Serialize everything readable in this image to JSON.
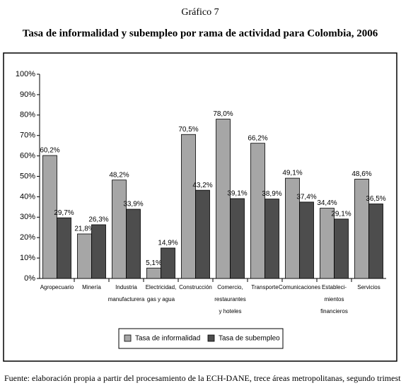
{
  "chart_data": {
    "type": "bar",
    "figure_label": "Gráfico 7",
    "title": "Tasa de informalidad y subempleo por rama de actividad para Colombia, 2006",
    "source": "Fuente: elaboración propia a partir del procesamiento de la ECH-DANE, trece áreas metropolitanas, segundo trimestre.",
    "categories": [
      "Agropecuario",
      "Minería",
      "Industria\nmanufacturera",
      "Electricidad,\ngas y agua",
      "Construcción",
      "Comercio,\nrestaurantes\ny hoteles",
      "Transporte",
      "Comunicaciones",
      "Estableci-\nmientos\nfinancieros",
      "Servicios"
    ],
    "series": [
      {
        "name": "Tasa de informalidad",
        "color": "#a6a6a6",
        "values": [
          60.2,
          21.8,
          48.2,
          5.1,
          70.5,
          78.0,
          66.2,
          49.1,
          34.4,
          48.6
        ],
        "value_labels": [
          "60,2%",
          "21,8%",
          "48,2%",
          "5,1%",
          "70,5%",
          "78,0%",
          "66,2%",
          "49,1%",
          "34,4%",
          "48,6%"
        ]
      },
      {
        "name": "Tasa de subempleo",
        "color": "#4d4d4d",
        "values": [
          29.7,
          26.3,
          33.9,
          14.9,
          43.2,
          39.1,
          38.9,
          37.4,
          29.1,
          36.5
        ],
        "value_labels": [
          "29,7%",
          "26,3%",
          "33,9%",
          "14,9%",
          "43,2%",
          "39,1%",
          "38,9%",
          "37,4%",
          "29,1%",
          "36,5%"
        ]
      }
    ],
    "ylim": [
      0,
      100
    ],
    "yticks": [
      {
        "value": 0,
        "label": "0%"
      },
      {
        "value": 10,
        "label": "10%"
      },
      {
        "value": 20,
        "label": "20%"
      },
      {
        "value": 30,
        "label": "30%"
      },
      {
        "value": 40,
        "label": "40%"
      },
      {
        "value": 50,
        "label": "50%"
      },
      {
        "value": 60,
        "label": "60%"
      },
      {
        "value": 70,
        "label": "70%"
      },
      {
        "value": 80,
        "label": "80%"
      },
      {
        "value": 90,
        "label": "90%"
      },
      {
        "value": 100,
        "label": "100%"
      }
    ],
    "grid": false
  }
}
